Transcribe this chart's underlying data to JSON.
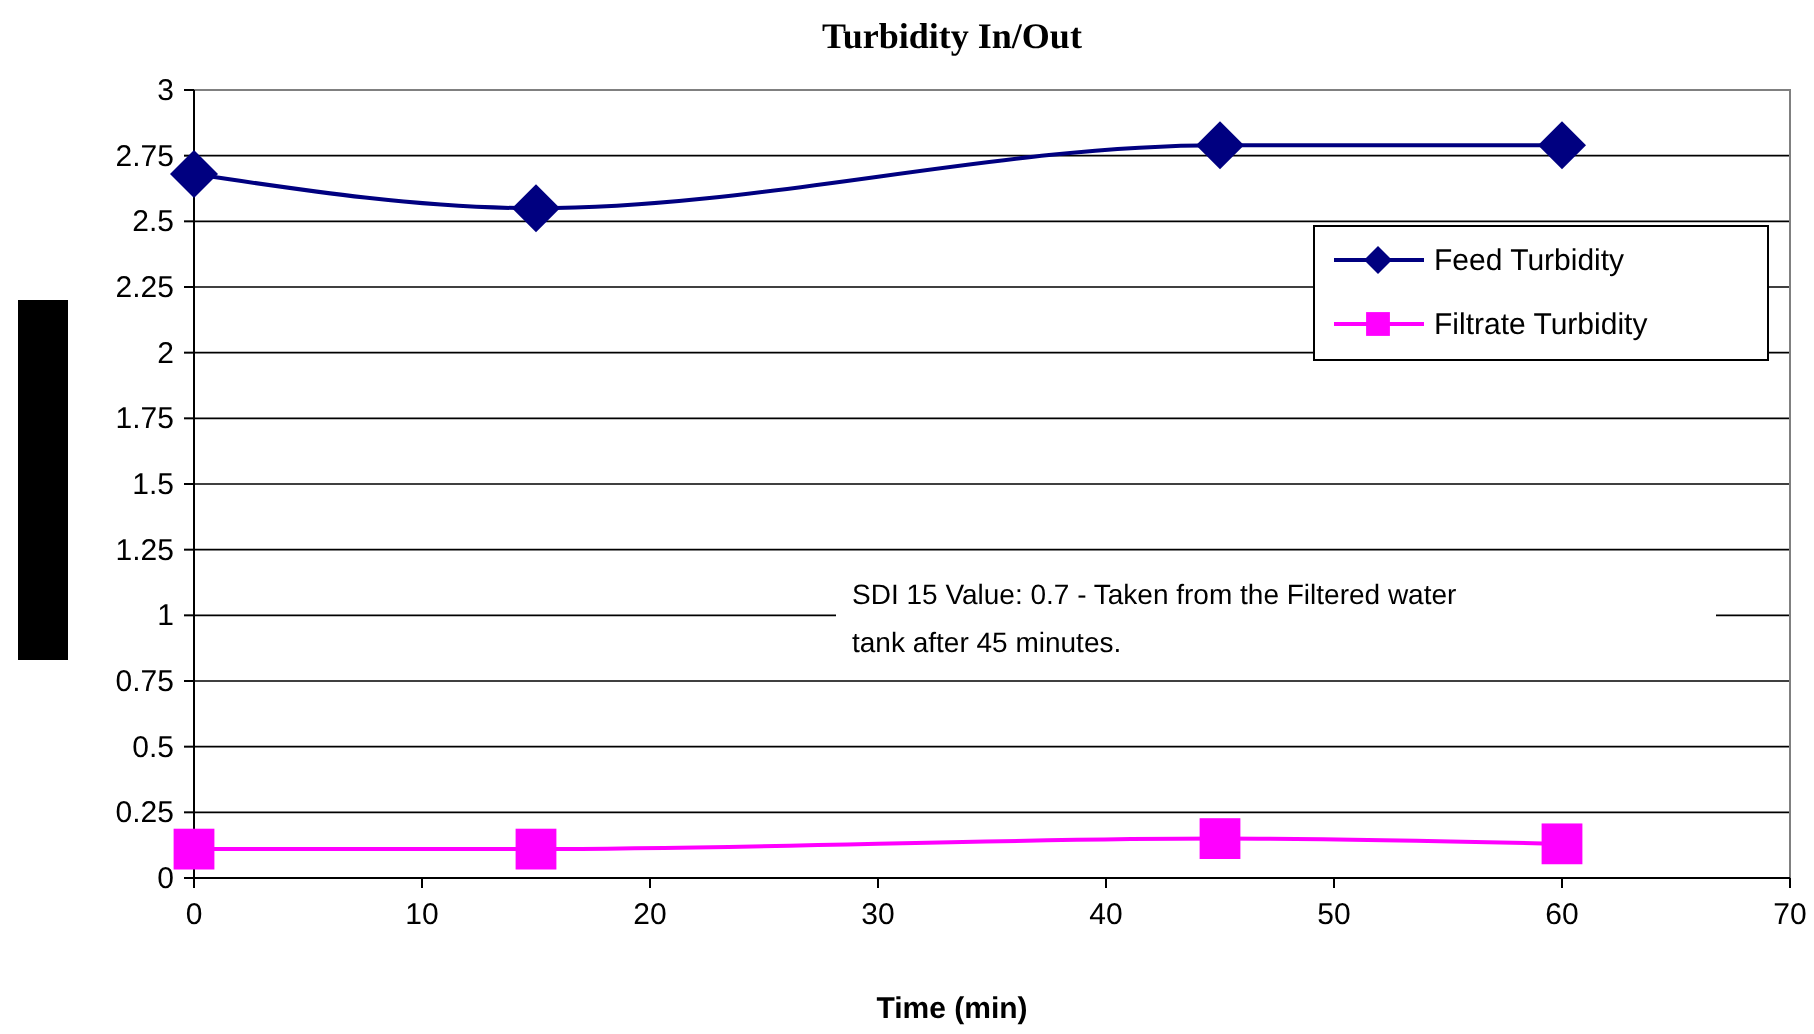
{
  "chart_data": {
    "type": "line",
    "title": "Turbidity In/Out",
    "xlabel": "Time (min)",
    "x": [
      0,
      15,
      45,
      60
    ],
    "series": [
      {
        "name": "Feed Turbidity",
        "color": "#000080",
        "marker": "diamond",
        "values": [
          2.68,
          2.55,
          2.79,
          2.79
        ]
      },
      {
        "name": "Filtrate Turbidity",
        "color": "#ff00ff",
        "marker": "square",
        "values": [
          0.11,
          0.11,
          0.15,
          0.13
        ]
      }
    ],
    "xlim": [
      0,
      70
    ],
    "xticks": [
      0,
      10,
      20,
      30,
      40,
      50,
      60,
      70
    ],
    "ylim": [
      0,
      3
    ],
    "yticks": [
      0,
      0.25,
      0.5,
      0.75,
      1,
      1.25,
      1.5,
      1.75,
      2,
      2.25,
      2.5,
      2.75,
      3
    ],
    "grid": "y",
    "legend": "right",
    "annotations": [
      "SDI 15 Value: 0.7 - Taken from the Filtered water tank after 45 minutes."
    ]
  }
}
